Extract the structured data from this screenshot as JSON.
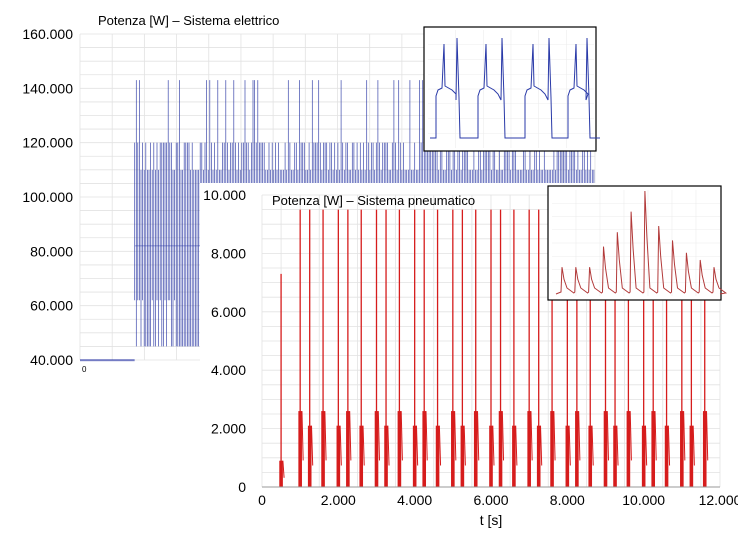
{
  "colors": {
    "electric": "#1c2a9e",
    "pneumatic": "#d61c1c",
    "grid": "#e2e2e2",
    "inset_electric": "#2a3aa8",
    "inset_pneumatic": "#b23a3a"
  },
  "chart_data": [
    {
      "id": "electric",
      "type": "line",
      "title": "Potenza [W] – Sistema elettrico",
      "ylabel": "",
      "xlabel": "",
      "ylim": [
        40000,
        160000
      ],
      "y_ticks": [
        "40.000",
        "60.000",
        "80.000",
        "100.000",
        "120.000",
        "140.000",
        "160.000"
      ],
      "x_tick_visible": "0",
      "grid": true,
      "series": [
        {
          "baseline_level": 40000,
          "switch_start_fraction": 0.11,
          "switching_levels": [
            45000,
            62000,
            82000,
            110000,
            120000,
            143000
          ]
        }
      ],
      "inset": {
        "type": "line",
        "description_series": "periodic pulse detail"
      }
    },
    {
      "id": "pneumatic",
      "type": "line",
      "title": "Potenza [W] – Sistema pneumatico",
      "xlabel": "t [s]",
      "ylabel": "",
      "xlim": [
        0,
        12000
      ],
      "ylim": [
        0,
        10000
      ],
      "x_ticks": [
        "0",
        "2.000",
        "4.000",
        "6.000",
        "8.000",
        "10.000",
        "12.000"
      ],
      "y_ticks": [
        "0",
        "2.000",
        "4.000",
        "6.000",
        "8.000",
        "10.000"
      ],
      "grid": true,
      "series": [
        {
          "pulse_times": [
            500,
            1000,
            1250,
            1600,
            2000,
            2250,
            2600,
            3000,
            3250,
            3600,
            4000,
            4250,
            4600,
            5000,
            5250,
            5600,
            6000,
            6250,
            6600,
            7000,
            7250,
            7600,
            8000,
            8250,
            8600,
            9000,
            9250,
            9600,
            10000,
            10250,
            10600,
            11000,
            11250,
            11600
          ],
          "pulse_peaks": [
            7300,
            9500,
            9500,
            9500,
            9500,
            9500,
            9500,
            9500,
            9500,
            9500,
            9500,
            9500,
            9500,
            9500,
            9500,
            9500,
            9500,
            9500,
            9500,
            9500,
            9500,
            9500,
            9500,
            9500,
            9500,
            9500,
            9500,
            9500,
            9500,
            9500,
            9500,
            9500,
            9500,
            9500
          ],
          "plateau_low": 1800,
          "plateau_high": 2600
        }
      ],
      "inset": {
        "type": "line",
        "peaks_relative": [
          0.26,
          0.26,
          0.26,
          0.46,
          0.6,
          0.8,
          1.0,
          0.66,
          0.52,
          0.4,
          0.33,
          0.26
        ]
      }
    }
  ]
}
